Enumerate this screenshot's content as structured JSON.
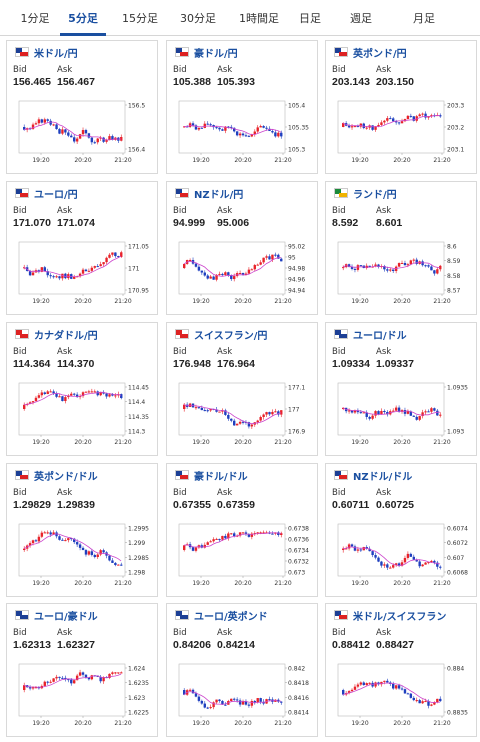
{
  "tabs": [
    {
      "label": "1分足",
      "active": false
    },
    {
      "label": "5分足",
      "active": true
    },
    {
      "label": "15分足",
      "active": false
    },
    {
      "label": "30分足",
      "active": false
    },
    {
      "label": "1時間足",
      "active": false
    },
    {
      "label": "日足",
      "active": false
    },
    {
      "label": "週足",
      "active": false
    },
    {
      "label": "月足",
      "active": false
    }
  ],
  "labels": {
    "bid": "Bid",
    "ask": "Ask"
  },
  "colors": {
    "up": "#e8232a",
    "down": "#1f3fbf",
    "ma": "#cc44cc",
    "accent": "#1a4fa0"
  },
  "cards": [
    {
      "pair": "米ドル/円",
      "flag": "us-jp-flag-icon",
      "f1": "#1c3f95",
      "f2": "#d22",
      "bid": "156.465",
      "ask": "156.467",
      "yticks": [
        "156.5",
        "156.4"
      ],
      "x_labels": [
        "19:20",
        "20:20",
        "21:20"
      ],
      "seed": 3
    },
    {
      "pair": "豪ドル/円",
      "flag": "au-jp-flag-icon",
      "f1": "#1c3f95",
      "f2": "#d22",
      "bid": "105.388",
      "ask": "105.393",
      "yticks": [
        "105.4",
        "105.35",
        "105.3"
      ],
      "x_labels": [
        "19:20",
        "20:20",
        "21:20"
      ],
      "seed": 7
    },
    {
      "pair": "英ポンド/円",
      "flag": "gb-jp-flag-icon",
      "f1": "#1c3f95",
      "f2": "#d22",
      "bid": "203.143",
      "ask": "203.150",
      "yticks": [
        "203.3",
        "203.2",
        "203.1"
      ],
      "x_labels": [
        "19:20",
        "20:20",
        "21:20"
      ],
      "seed": 11
    },
    {
      "pair": "ユーロ/円",
      "flag": "eu-jp-flag-icon",
      "f1": "#1c3f95",
      "f2": "#d22",
      "bid": "171.070",
      "ask": "171.074",
      "yticks": [
        "171.05",
        "171",
        "170.95"
      ],
      "x_labels": [
        "19:20",
        "20:20",
        "21:20"
      ],
      "seed": 13
    },
    {
      "pair": "NZドル/円",
      "flag": "nz-jp-flag-icon",
      "f1": "#1c3f95",
      "f2": "#d22",
      "bid": "94.999",
      "ask": "95.006",
      "yticks": [
        "95.02",
        "95",
        "94.98",
        "94.96",
        "94.94"
      ],
      "x_labels": [
        "19:20",
        "20:20",
        "21:20"
      ],
      "seed": 17
    },
    {
      "pair": "ランド/円",
      "flag": "za-jp-flag-icon",
      "f1": "#1a8a3a",
      "f2": "#f0b400",
      "bid": "8.592",
      "ask": "8.601",
      "yticks": [
        "8.6",
        "8.59",
        "8.58",
        "8.57"
      ],
      "x_labels": [
        "19:20",
        "20:20",
        "21:20"
      ],
      "seed": 19
    },
    {
      "pair": "カナダドル/円",
      "flag": "ca-jp-flag-icon",
      "f1": "#d22",
      "f2": "#d22",
      "bid": "114.364",
      "ask": "114.370",
      "yticks": [
        "114.45",
        "114.4",
        "114.35",
        "114.3"
      ],
      "x_labels": [
        "19:20",
        "20:20",
        "21:20"
      ],
      "seed": 23
    },
    {
      "pair": "スイスフラン/円",
      "flag": "ch-jp-flag-icon",
      "f1": "#d22",
      "f2": "#d22",
      "bid": "176.948",
      "ask": "176.964",
      "yticks": [
        "177.1",
        "177",
        "176.9"
      ],
      "x_labels": [
        "19:20",
        "20:20",
        "21:20"
      ],
      "seed": 29
    },
    {
      "pair": "ユーロ/ドル",
      "flag": "eu-us-flag-icon",
      "f1": "#1c3f95",
      "f2": "#1c3f95",
      "bid": "1.09334",
      "ask": "1.09337",
      "yticks": [
        "1.0935",
        "1.093"
      ],
      "x_labels": [
        "19:20",
        "20:20",
        "21:20"
      ],
      "seed": 31
    },
    {
      "pair": "英ポンド/ドル",
      "flag": "gb-us-flag-icon",
      "f1": "#1c3f95",
      "f2": "#d22",
      "bid": "1.29829",
      "ask": "1.29839",
      "yticks": [
        "1.2995",
        "1.299",
        "1.2985",
        "1.298"
      ],
      "x_labels": [
        "19:20",
        "20:20",
        "21:20"
      ],
      "seed": 37
    },
    {
      "pair": "豪ドル/ドル",
      "flag": "au-us-flag-icon",
      "f1": "#1c3f95",
      "f2": "#d22",
      "bid": "0.67355",
      "ask": "0.67359",
      "yticks": [
        "0.6738",
        "0.6736",
        "0.6734",
        "0.6732",
        "0.673"
      ],
      "x_labels": [
        "19:20",
        "20:20",
        "21:20"
      ],
      "seed": 41
    },
    {
      "pair": "NZドル/ドル",
      "flag": "nz-us-flag-icon",
      "f1": "#1c3f95",
      "f2": "#d22",
      "bid": "0.60711",
      "ask": "0.60725",
      "yticks": [
        "0.6074",
        "0.6072",
        "0.607",
        "0.6068"
      ],
      "x_labels": [
        "19:20",
        "20:20",
        "21:20"
      ],
      "seed": 43
    },
    {
      "pair": "ユーロ/豪ドル",
      "flag": "eu-au-flag-icon",
      "f1": "#1c3f95",
      "f2": "#1c3f95",
      "bid": "1.62313",
      "ask": "1.62327",
      "yticks": [
        "1.624",
        "1.6235",
        "1.623",
        "1.6225"
      ],
      "x_labels": [
        "19:20",
        "20:20",
        "21:20"
      ],
      "seed": 47
    },
    {
      "pair": "ユーロ/英ポンド",
      "flag": "eu-gb-flag-icon",
      "f1": "#1c3f95",
      "f2": "#1c3f95",
      "bid": "0.84206",
      "ask": "0.84214",
      "yticks": [
        "0.842",
        "0.8418",
        "0.8416",
        "0.8414"
      ],
      "x_labels": [
        "19:20",
        "20:20",
        "21:20"
      ],
      "seed": 53
    },
    {
      "pair": "米ドル/スイスフラン",
      "flag": "us-ch-flag-icon",
      "f1": "#1c3f95",
      "f2": "#d22",
      "bid": "0.88412",
      "ask": "0.88427",
      "yticks": [
        "0.884",
        "0.8835"
      ],
      "x_labels": [
        "19:20",
        "20:20",
        "21:20"
      ],
      "seed": 59
    }
  ]
}
